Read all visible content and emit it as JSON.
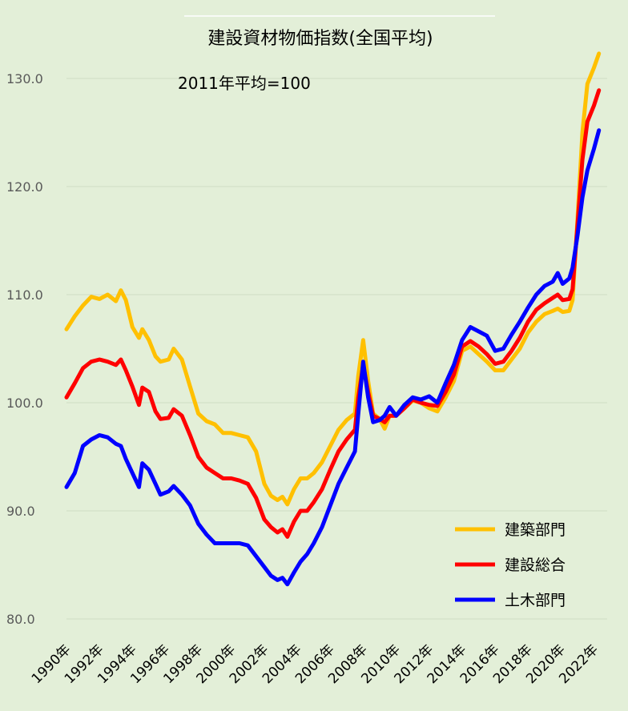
{
  "chart_data": {
    "type": "line",
    "title": "建設資材物価指数(全国平均)",
    "subtitle": "2011年平均=100",
    "xlabel": "",
    "ylabel": "",
    "ylim": [
      80,
      132.5
    ],
    "xlim": [
      1990.0,
      2022.8
    ],
    "grid": true,
    "legend_position": "bottom-right",
    "y_ticks": [
      "80.0",
      "90.0",
      "100.0",
      "110.0",
      "120.0",
      "130.0"
    ],
    "x_ticks": [
      "1990年",
      "1992年",
      "1994年",
      "1996年",
      "1998年",
      "2000年",
      "2002年",
      "2004年",
      "2006年",
      "2008年",
      "2010年",
      "2012年",
      "2014年",
      "2016年",
      "2018年",
      "2020年",
      "2022年"
    ],
    "series": [
      {
        "name": "建築部門",
        "color": "#ffc000",
        "points": [
          [
            1990.0,
            106.8
          ],
          [
            1990.5,
            108.0
          ],
          [
            1991.0,
            109.0
          ],
          [
            1991.5,
            109.8
          ],
          [
            1992.0,
            109.6
          ],
          [
            1992.5,
            110.0
          ],
          [
            1993.0,
            109.4
          ],
          [
            1993.3,
            110.4
          ],
          [
            1993.6,
            109.5
          ],
          [
            1994.0,
            107.0
          ],
          [
            1994.4,
            106.0
          ],
          [
            1994.6,
            106.8
          ],
          [
            1995.0,
            105.8
          ],
          [
            1995.4,
            104.3
          ],
          [
            1995.7,
            103.8
          ],
          [
            1996.2,
            104.0
          ],
          [
            1996.5,
            105.0
          ],
          [
            1997.0,
            104.0
          ],
          [
            1997.5,
            101.5
          ],
          [
            1998.0,
            99.0
          ],
          [
            1998.5,
            98.3
          ],
          [
            1999.0,
            98.0
          ],
          [
            1999.5,
            97.2
          ],
          [
            2000.0,
            97.2
          ],
          [
            2000.5,
            97.0
          ],
          [
            2001.0,
            96.8
          ],
          [
            2001.5,
            95.5
          ],
          [
            2002.0,
            92.5
          ],
          [
            2002.4,
            91.4
          ],
          [
            2002.8,
            91.0
          ],
          [
            2003.1,
            91.3
          ],
          [
            2003.4,
            90.6
          ],
          [
            2003.8,
            92.0
          ],
          [
            2004.2,
            93.0
          ],
          [
            2004.6,
            93.0
          ],
          [
            2005.0,
            93.5
          ],
          [
            2005.5,
            94.5
          ],
          [
            2006.0,
            96.0
          ],
          [
            2006.5,
            97.5
          ],
          [
            2007.0,
            98.4
          ],
          [
            2007.5,
            99.0
          ],
          [
            2007.7,
            102.5
          ],
          [
            2008.0,
            105.8
          ],
          [
            2008.3,
            102.0
          ],
          [
            2008.6,
            99.0
          ],
          [
            2009.0,
            98.5
          ],
          [
            2009.3,
            97.6
          ],
          [
            2009.6,
            98.8
          ],
          [
            2010.0,
            98.8
          ],
          [
            2010.5,
            99.5
          ],
          [
            2011.0,
            100.2
          ],
          [
            2011.5,
            100.0
          ],
          [
            2012.0,
            99.5
          ],
          [
            2012.5,
            99.2
          ],
          [
            2013.0,
            100.5
          ],
          [
            2013.5,
            102.0
          ],
          [
            2014.0,
            104.8
          ],
          [
            2014.5,
            105.2
          ],
          [
            2015.0,
            104.5
          ],
          [
            2015.5,
            103.8
          ],
          [
            2016.0,
            103.0
          ],
          [
            2016.5,
            103.0
          ],
          [
            2017.0,
            104.0
          ],
          [
            2017.5,
            105.0
          ],
          [
            2018.0,
            106.5
          ],
          [
            2018.5,
            107.5
          ],
          [
            2019.0,
            108.2
          ],
          [
            2019.5,
            108.5
          ],
          [
            2019.8,
            108.7
          ],
          [
            2020.1,
            108.4
          ],
          [
            2020.5,
            108.5
          ],
          [
            2020.7,
            109.5
          ],
          [
            2021.0,
            117.0
          ],
          [
            2021.3,
            125.0
          ],
          [
            2021.6,
            129.5
          ],
          [
            2022.0,
            131.0
          ],
          [
            2022.3,
            132.3
          ]
        ]
      },
      {
        "name": "建設総合",
        "color": "#ff0000",
        "points": [
          [
            1990.0,
            100.5
          ],
          [
            1990.5,
            101.8
          ],
          [
            1991.0,
            103.2
          ],
          [
            1991.5,
            103.8
          ],
          [
            1992.0,
            104.0
          ],
          [
            1992.5,
            103.8
          ],
          [
            1993.0,
            103.5
          ],
          [
            1993.3,
            104.0
          ],
          [
            1993.6,
            103.0
          ],
          [
            1994.0,
            101.5
          ],
          [
            1994.4,
            99.8
          ],
          [
            1994.6,
            101.4
          ],
          [
            1995.0,
            101.0
          ],
          [
            1995.4,
            99.2
          ],
          [
            1995.7,
            98.5
          ],
          [
            1996.2,
            98.6
          ],
          [
            1996.5,
            99.4
          ],
          [
            1997.0,
            98.8
          ],
          [
            1997.5,
            97.0
          ],
          [
            1998.0,
            95.0
          ],
          [
            1998.5,
            94.0
          ],
          [
            1999.0,
            93.5
          ],
          [
            1999.5,
            93.0
          ],
          [
            2000.0,
            93.0
          ],
          [
            2000.5,
            92.8
          ],
          [
            2001.0,
            92.5
          ],
          [
            2001.5,
            91.2
          ],
          [
            2002.0,
            89.2
          ],
          [
            2002.4,
            88.5
          ],
          [
            2002.8,
            88.0
          ],
          [
            2003.1,
            88.3
          ],
          [
            2003.4,
            87.6
          ],
          [
            2003.8,
            89.0
          ],
          [
            2004.2,
            90.0
          ],
          [
            2004.6,
            90.0
          ],
          [
            2005.0,
            90.8
          ],
          [
            2005.5,
            92.0
          ],
          [
            2006.0,
            93.8
          ],
          [
            2006.5,
            95.5
          ],
          [
            2007.0,
            96.6
          ],
          [
            2007.5,
            97.5
          ],
          [
            2007.7,
            100.5
          ],
          [
            2008.0,
            103.5
          ],
          [
            2008.3,
            101.0
          ],
          [
            2008.6,
            98.8
          ],
          [
            2009.0,
            98.5
          ],
          [
            2009.3,
            98.2
          ],
          [
            2009.6,
            98.8
          ],
          [
            2010.0,
            98.8
          ],
          [
            2010.5,
            99.5
          ],
          [
            2011.0,
            100.3
          ],
          [
            2011.5,
            100.0
          ],
          [
            2012.0,
            99.8
          ],
          [
            2012.5,
            99.7
          ],
          [
            2013.0,
            101.0
          ],
          [
            2013.5,
            102.6
          ],
          [
            2014.0,
            105.2
          ],
          [
            2014.5,
            105.7
          ],
          [
            2015.0,
            105.2
          ],
          [
            2015.5,
            104.5
          ],
          [
            2016.0,
            103.6
          ],
          [
            2016.5,
            103.8
          ],
          [
            2017.0,
            104.8
          ],
          [
            2017.5,
            106.0
          ],
          [
            2018.0,
            107.5
          ],
          [
            2018.5,
            108.6
          ],
          [
            2019.0,
            109.2
          ],
          [
            2019.5,
            109.7
          ],
          [
            2019.8,
            110.0
          ],
          [
            2020.1,
            109.5
          ],
          [
            2020.5,
            109.6
          ],
          [
            2020.7,
            110.5
          ],
          [
            2021.0,
            116.5
          ],
          [
            2021.3,
            122.5
          ],
          [
            2021.6,
            126.0
          ],
          [
            2022.0,
            127.5
          ],
          [
            2022.3,
            128.9
          ]
        ]
      },
      {
        "name": "土木部門",
        "color": "#0000ff",
        "points": [
          [
            1990.0,
            92.2
          ],
          [
            1990.5,
            93.5
          ],
          [
            1991.0,
            96.0
          ],
          [
            1991.5,
            96.6
          ],
          [
            1992.0,
            97.0
          ],
          [
            1992.5,
            96.8
          ],
          [
            1993.0,
            96.2
          ],
          [
            1993.3,
            96.0
          ],
          [
            1993.6,
            94.8
          ],
          [
            1994.0,
            93.5
          ],
          [
            1994.4,
            92.2
          ],
          [
            1994.6,
            94.4
          ],
          [
            1995.0,
            93.8
          ],
          [
            1995.4,
            92.5
          ],
          [
            1995.7,
            91.5
          ],
          [
            1996.2,
            91.8
          ],
          [
            1996.5,
            92.3
          ],
          [
            1997.0,
            91.5
          ],
          [
            1997.5,
            90.5
          ],
          [
            1998.0,
            88.8
          ],
          [
            1998.5,
            87.8
          ],
          [
            1999.0,
            87.0
          ],
          [
            1999.5,
            87.0
          ],
          [
            2000.0,
            87.0
          ],
          [
            2000.5,
            87.0
          ],
          [
            2001.0,
            86.8
          ],
          [
            2001.5,
            85.8
          ],
          [
            2002.0,
            84.8
          ],
          [
            2002.4,
            84.0
          ],
          [
            2002.8,
            83.6
          ],
          [
            2003.1,
            83.8
          ],
          [
            2003.4,
            83.2
          ],
          [
            2003.8,
            84.3
          ],
          [
            2004.2,
            85.3
          ],
          [
            2004.6,
            86.0
          ],
          [
            2005.0,
            87.0
          ],
          [
            2005.5,
            88.5
          ],
          [
            2006.0,
            90.5
          ],
          [
            2006.5,
            92.5
          ],
          [
            2007.0,
            94.0
          ],
          [
            2007.5,
            95.5
          ],
          [
            2007.7,
            99.0
          ],
          [
            2008.0,
            103.8
          ],
          [
            2008.3,
            100.5
          ],
          [
            2008.6,
            98.2
          ],
          [
            2009.0,
            98.4
          ],
          [
            2009.3,
            98.8
          ],
          [
            2009.6,
            99.6
          ],
          [
            2010.0,
            98.8
          ],
          [
            2010.5,
            99.8
          ],
          [
            2011.0,
            100.5
          ],
          [
            2011.5,
            100.3
          ],
          [
            2012.0,
            100.6
          ],
          [
            2012.5,
            100.0
          ],
          [
            2013.0,
            101.8
          ],
          [
            2013.5,
            103.5
          ],
          [
            2014.0,
            105.8
          ],
          [
            2014.5,
            107.0
          ],
          [
            2015.0,
            106.6
          ],
          [
            2015.5,
            106.2
          ],
          [
            2016.0,
            104.8
          ],
          [
            2016.5,
            105.0
          ],
          [
            2017.0,
            106.3
          ],
          [
            2017.5,
            107.5
          ],
          [
            2018.0,
            108.8
          ],
          [
            2018.5,
            110.0
          ],
          [
            2019.0,
            110.8
          ],
          [
            2019.5,
            111.2
          ],
          [
            2019.8,
            112.0
          ],
          [
            2020.1,
            111.0
          ],
          [
            2020.5,
            111.5
          ],
          [
            2020.7,
            112.5
          ],
          [
            2021.0,
            115.5
          ],
          [
            2021.3,
            119.0
          ],
          [
            2021.6,
            121.5
          ],
          [
            2022.0,
            123.5
          ],
          [
            2022.3,
            125.2
          ]
        ]
      }
    ]
  }
}
